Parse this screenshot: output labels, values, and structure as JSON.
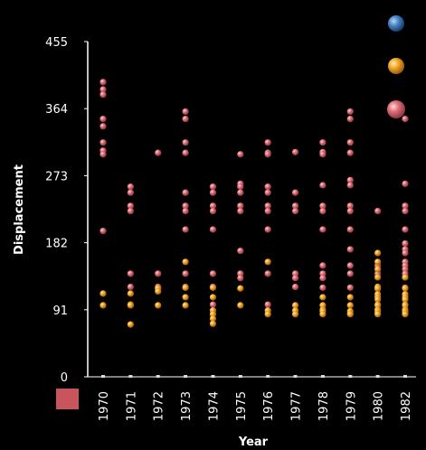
{
  "chart_data": {
    "type": "scatter",
    "title": "",
    "xlabel": "Year",
    "ylabel": "Displacement",
    "categories": [
      "1970",
      "1971",
      "1972",
      "1973",
      "1974",
      "1975",
      "1976",
      "1977",
      "1978",
      "1979",
      "1980",
      "1982"
    ],
    "yticks": [
      0,
      91,
      182,
      273,
      364,
      455
    ],
    "ylim": [
      0,
      455
    ],
    "grid": false,
    "legend": {
      "placement": "top-right",
      "colors": [
        "#4a86c8",
        "#f5a623",
        "#e06c75"
      ]
    },
    "series": [
      {
        "color": "#e06c75",
        "points": [
          [
            "1970",
            400
          ],
          [
            "1970",
            390
          ],
          [
            "1970",
            383
          ],
          [
            "1970",
            350
          ],
          [
            "1970",
            340
          ],
          [
            "1970",
            318
          ],
          [
            "1970",
            307
          ],
          [
            "1970",
            302
          ],
          [
            "1970",
            198
          ],
          [
            "1971",
            258
          ],
          [
            "1971",
            250
          ],
          [
            "1971",
            232
          ],
          [
            "1971",
            225
          ],
          [
            "1971",
            140
          ],
          [
            "1971",
            122
          ],
          [
            "1972",
            304
          ],
          [
            "1972",
            140
          ],
          [
            "1972",
            122
          ],
          [
            "1973",
            360
          ],
          [
            "1973",
            350
          ],
          [
            "1973",
            318
          ],
          [
            "1973",
            304
          ],
          [
            "1973",
            250
          ],
          [
            "1973",
            232
          ],
          [
            "1973",
            225
          ],
          [
            "1973",
            200
          ],
          [
            "1973",
            140
          ],
          [
            "1973",
            122
          ],
          [
            "1974",
            258
          ],
          [
            "1974",
            250
          ],
          [
            "1974",
            232
          ],
          [
            "1974",
            225
          ],
          [
            "1974",
            200
          ],
          [
            "1974",
            140
          ],
          [
            "1974",
            122
          ],
          [
            "1974",
            98
          ],
          [
            "1975",
            302
          ],
          [
            "1975",
            262
          ],
          [
            "1975",
            258
          ],
          [
            "1975",
            250
          ],
          [
            "1975",
            232
          ],
          [
            "1975",
            225
          ],
          [
            "1975",
            171
          ],
          [
            "1975",
            140
          ],
          [
            "1975",
            134
          ],
          [
            "1976",
            318
          ],
          [
            "1976",
            304
          ],
          [
            "1976",
            302
          ],
          [
            "1976",
            258
          ],
          [
            "1976",
            250
          ],
          [
            "1976",
            232
          ],
          [
            "1976",
            225
          ],
          [
            "1976",
            200
          ],
          [
            "1976",
            140
          ],
          [
            "1976",
            98
          ],
          [
            "1977",
            305
          ],
          [
            "1977",
            250
          ],
          [
            "1977",
            232
          ],
          [
            "1977",
            225
          ],
          [
            "1977",
            140
          ],
          [
            "1977",
            134
          ],
          [
            "1977",
            122
          ],
          [
            "1978",
            318
          ],
          [
            "1978",
            305
          ],
          [
            "1978",
            302
          ],
          [
            "1978",
            260
          ],
          [
            "1978",
            232
          ],
          [
            "1978",
            225
          ],
          [
            "1978",
            200
          ],
          [
            "1978",
            151
          ],
          [
            "1978",
            140
          ],
          [
            "1978",
            134
          ],
          [
            "1978",
            121
          ],
          [
            "1979",
            360
          ],
          [
            "1979",
            350
          ],
          [
            "1979",
            318
          ],
          [
            "1979",
            304
          ],
          [
            "1979",
            267
          ],
          [
            "1979",
            260
          ],
          [
            "1979",
            232
          ],
          [
            "1979",
            225
          ],
          [
            "1979",
            200
          ],
          [
            "1979",
            173
          ],
          [
            "1979",
            151
          ],
          [
            "1979",
            140
          ],
          [
            "1979",
            121
          ],
          [
            "1980",
            225
          ],
          [
            "1980",
            151
          ],
          [
            "1980",
            140
          ],
          [
            "1980",
            119
          ],
          [
            "1982",
            350
          ],
          [
            "1982",
            262
          ],
          [
            "1982",
            232
          ],
          [
            "1982",
            225
          ],
          [
            "1982",
            200
          ],
          [
            "1982",
            181
          ],
          [
            "1982",
            173
          ],
          [
            "1982",
            168
          ],
          [
            "1982",
            156
          ],
          [
            "1982",
            151
          ],
          [
            "1982",
            146
          ],
          [
            "1982",
            140
          ],
          [
            "1982",
            135
          ],
          [
            "1982",
            121
          ]
        ]
      },
      {
        "color": "#f5a623",
        "points": [
          [
            "1970",
            113
          ],
          [
            "1970",
            97
          ],
          [
            "1971",
            113
          ],
          [
            "1971",
            98
          ],
          [
            "1971",
            97
          ],
          [
            "1971",
            71
          ],
          [
            "1972",
            120
          ],
          [
            "1972",
            116
          ],
          [
            "1972",
            97
          ],
          [
            "1973",
            156
          ],
          [
            "1973",
            121
          ],
          [
            "1973",
            108
          ],
          [
            "1973",
            97
          ],
          [
            "1974",
            121
          ],
          [
            "1974",
            108
          ],
          [
            "1974",
            90
          ],
          [
            "1974",
            85
          ],
          [
            "1974",
            79
          ],
          [
            "1974",
            72
          ],
          [
            "1975",
            120
          ],
          [
            "1975",
            97
          ],
          [
            "1976",
            156
          ],
          [
            "1976",
            90
          ],
          [
            "1976",
            85
          ],
          [
            "1977",
            97
          ],
          [
            "1977",
            90
          ],
          [
            "1977",
            85
          ],
          [
            "1978",
            108
          ],
          [
            "1978",
            97
          ],
          [
            "1978",
            91
          ],
          [
            "1978",
            89
          ],
          [
            "1978",
            85
          ],
          [
            "1979",
            108
          ],
          [
            "1979",
            97
          ],
          [
            "1979",
            89
          ],
          [
            "1979",
            86
          ],
          [
            "1979",
            85
          ],
          [
            "1980",
            168
          ],
          [
            "1980",
            156
          ],
          [
            "1980",
            146
          ],
          [
            "1980",
            135
          ],
          [
            "1980",
            122
          ],
          [
            "1980",
            120
          ],
          [
            "1980",
            112
          ],
          [
            "1980",
            108
          ],
          [
            "1980",
            105
          ],
          [
            "1980",
            98
          ],
          [
            "1980",
            97
          ],
          [
            "1980",
            91
          ],
          [
            "1980",
            89
          ],
          [
            "1980",
            86
          ],
          [
            "1980",
            85
          ],
          [
            "1982",
            135
          ],
          [
            "1982",
            120
          ],
          [
            "1982",
            112
          ],
          [
            "1982",
            108
          ],
          [
            "1982",
            105
          ],
          [
            "1982",
            98
          ],
          [
            "1982",
            97
          ],
          [
            "1982",
            91
          ],
          [
            "1982",
            89
          ],
          [
            "1982",
            86
          ],
          [
            "1982",
            85
          ]
        ]
      }
    ]
  }
}
